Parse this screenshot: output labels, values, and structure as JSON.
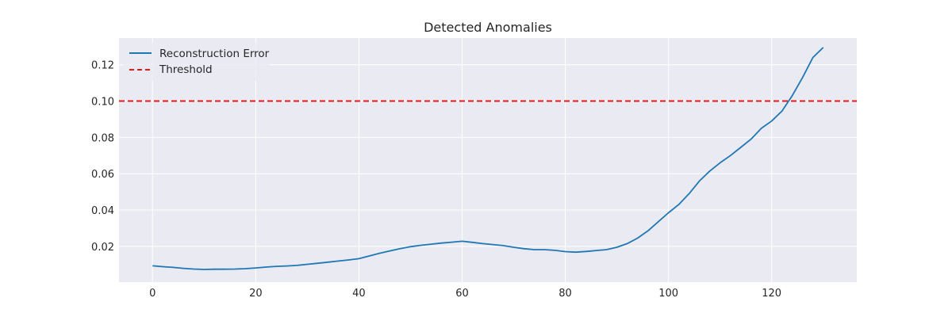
{
  "chart_data": {
    "type": "line",
    "title": "Detected Anomalies",
    "xlabel": "",
    "ylabel": "",
    "xlim": [
      -6.5,
      136.5
    ],
    "ylim": [
      0.0003,
      0.1347
    ],
    "xticks": [
      0,
      20,
      40,
      60,
      80,
      100,
      120
    ],
    "yticks": [
      0.02,
      0.04,
      0.06,
      0.08,
      0.1,
      0.12
    ],
    "ytick_labels": [
      "0.02",
      "0.04",
      "0.06",
      "0.08",
      "0.10",
      "0.12"
    ],
    "grid": true,
    "legend_position": "top-left",
    "series": [
      {
        "name": "Reconstruction Error",
        "color": "#1f77b4",
        "style": "solid",
        "x": [
          0,
          2,
          4,
          6,
          8,
          10,
          12,
          14,
          16,
          18,
          20,
          22,
          24,
          26,
          28,
          30,
          32,
          34,
          36,
          38,
          40,
          42,
          44,
          46,
          48,
          50,
          52,
          54,
          56,
          58,
          60,
          62,
          64,
          66,
          68,
          70,
          72,
          74,
          76,
          78,
          80,
          82,
          84,
          86,
          88,
          90,
          92,
          94,
          96,
          98,
          100,
          102,
          104,
          106,
          108,
          110,
          112,
          114,
          116,
          118,
          120,
          122,
          124,
          126,
          128,
          130
        ],
        "values": [
          0.0093,
          0.0088,
          0.0084,
          0.0079,
          0.0075,
          0.0073,
          0.0074,
          0.0074,
          0.0075,
          0.0077,
          0.0081,
          0.0086,
          0.009,
          0.0092,
          0.0095,
          0.0101,
          0.0107,
          0.0113,
          0.0119,
          0.0125,
          0.0132,
          0.0147,
          0.0162,
          0.0175,
          0.0187,
          0.0198,
          0.0206,
          0.0212,
          0.0218,
          0.0223,
          0.0228,
          0.0222,
          0.0215,
          0.021,
          0.0204,
          0.0195,
          0.0187,
          0.0182,
          0.0182,
          0.0178,
          0.0171,
          0.0168,
          0.0172,
          0.0177,
          0.0182,
          0.0195,
          0.0215,
          0.0245,
          0.0285,
          0.0335,
          0.0385,
          0.043,
          0.049,
          0.056,
          0.0615,
          0.066,
          0.07,
          0.0745,
          0.079,
          0.085,
          0.089,
          0.0945,
          0.103,
          0.113,
          0.124,
          0.1295
        ]
      },
      {
        "name": "Threshold",
        "color": "#e31a1c",
        "style": "dashed",
        "y": 0.1
      }
    ]
  }
}
